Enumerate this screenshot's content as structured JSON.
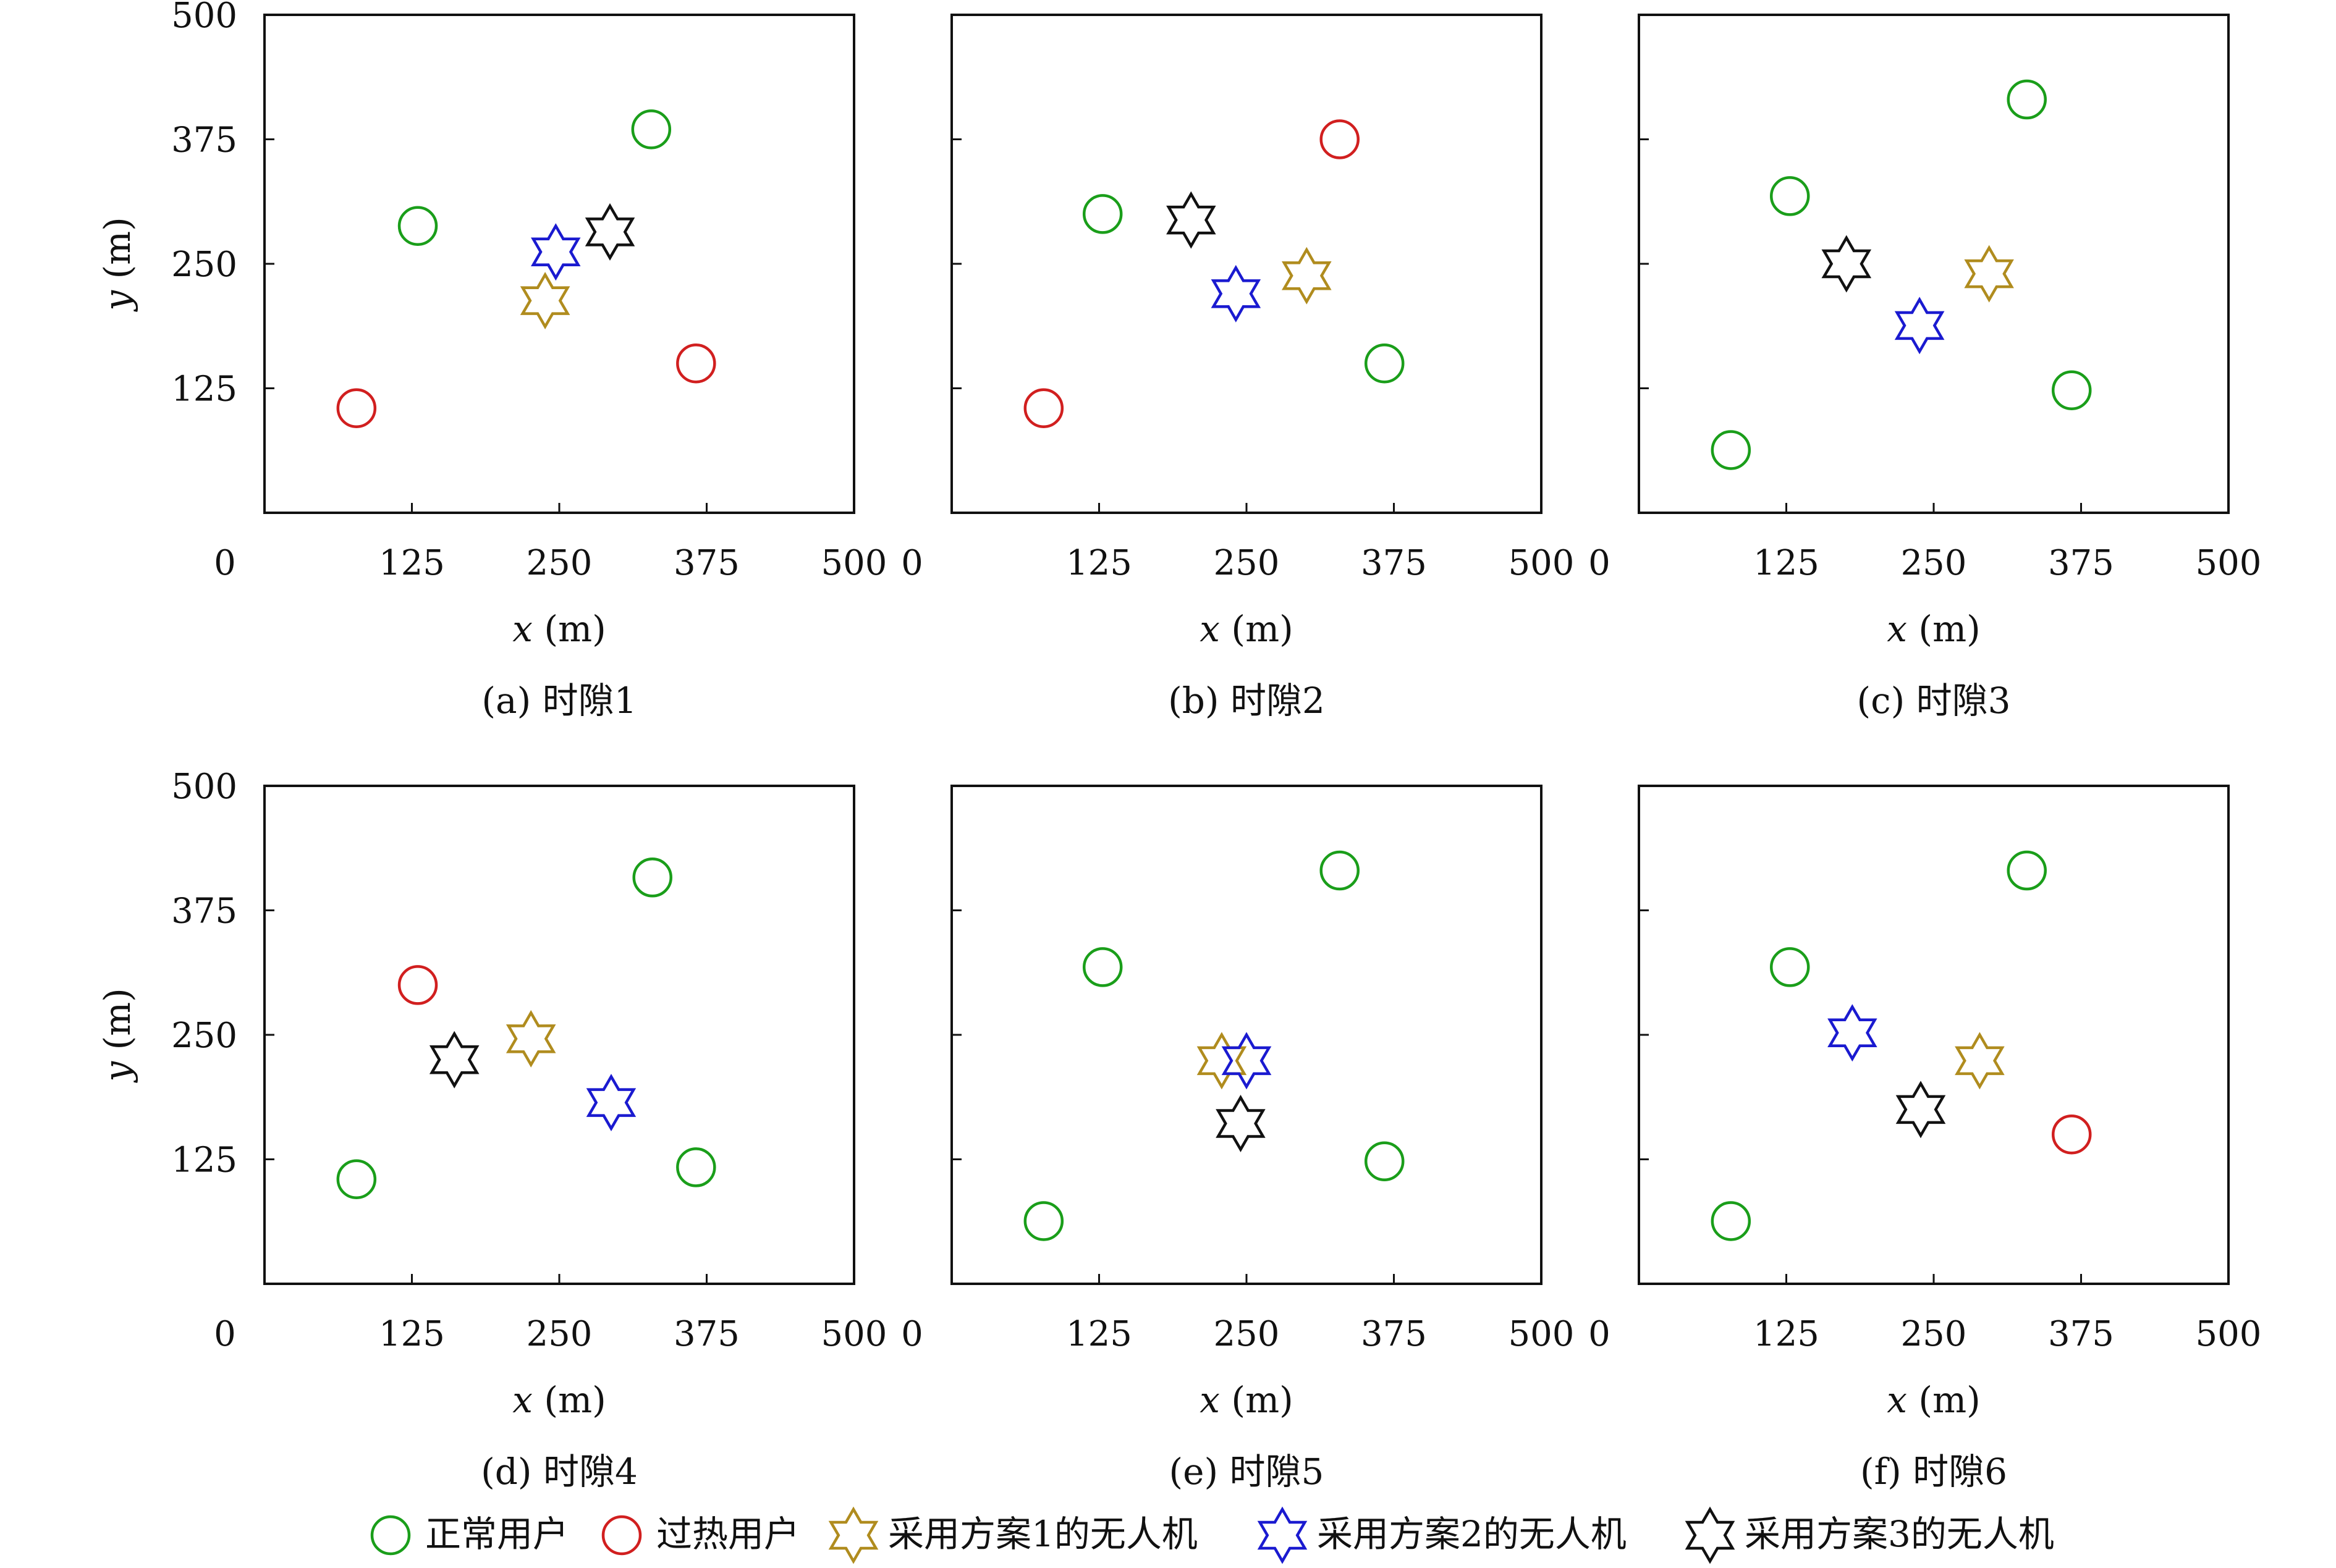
{
  "colors": {
    "normal_user": "#1a9e1a",
    "overheated_user": "#d11f1f",
    "uav_scheme1": "#b08c1e",
    "uav_scheme2": "#1a1ad0",
    "uav_scheme3": "#111111"
  },
  "legend": [
    {
      "key": "normal_user",
      "label": "正常用户",
      "marker": "circle"
    },
    {
      "key": "overheated_user",
      "label": "过热用户",
      "marker": "circle"
    },
    {
      "key": "uav_scheme1",
      "label": "采用方案1的无人机",
      "marker": "hexagram"
    },
    {
      "key": "uav_scheme2",
      "label": "采用方案2的无人机",
      "marker": "hexagram"
    },
    {
      "key": "uav_scheme3",
      "label": "采用方案3的无人机",
      "marker": "hexagram"
    }
  ],
  "chart_data": [
    {
      "type": "scatter",
      "caption": "(a) 时隙1",
      "xlabel": "x (m)",
      "ylabel": "y (m)",
      "xlim": [
        0,
        500
      ],
      "ylim": [
        0,
        500
      ],
      "xticks": [
        "0",
        "125",
        "250",
        "375",
        "500"
      ],
      "yticks": [
        "125",
        "250",
        "375",
        "500"
      ],
      "grid": false,
      "series": [
        {
          "key": "normal_user",
          "points": [
            [
              130,
              288
            ],
            [
              328,
              385
            ]
          ]
        },
        {
          "key": "overheated_user",
          "points": [
            [
              78,
              105
            ],
            [
              366,
              150
            ]
          ]
        },
        {
          "key": "uav_scheme1",
          "points": [
            [
              238,
              213
            ]
          ]
        },
        {
          "key": "uav_scheme2",
          "points": [
            [
              247,
              262
            ]
          ]
        },
        {
          "key": "uav_scheme3",
          "points": [
            [
              293,
              282
            ]
          ]
        }
      ]
    },
    {
      "type": "scatter",
      "caption": "(b) 时隙2",
      "xlabel": "x (m)",
      "ylabel": "",
      "xlim": [
        0,
        500
      ],
      "ylim": [
        0,
        500
      ],
      "xticks": [
        "0",
        "125",
        "250",
        "375",
        "500"
      ],
      "yticks": [],
      "grid": false,
      "series": [
        {
          "key": "normal_user",
          "points": [
            [
              128,
              300
            ],
            [
              367,
              150
            ]
          ]
        },
        {
          "key": "overheated_user",
          "points": [
            [
              78,
              105
            ],
            [
              329,
              375
            ]
          ]
        },
        {
          "key": "uav_scheme1",
          "points": [
            [
              301,
              238
            ]
          ]
        },
        {
          "key": "uav_scheme2",
          "points": [
            [
              241,
              220
            ]
          ]
        },
        {
          "key": "uav_scheme3",
          "points": [
            [
              203,
              294
            ]
          ]
        }
      ]
    },
    {
      "type": "scatter",
      "caption": "(c) 时隙3",
      "xlabel": "x (m)",
      "ylabel": "",
      "xlim": [
        0,
        500
      ],
      "ylim": [
        0,
        500
      ],
      "xticks": [
        "0",
        "125",
        "250",
        "375",
        "500"
      ],
      "yticks": [],
      "grid": false,
      "series": [
        {
          "key": "normal_user",
          "points": [
            [
              128,
              318
            ],
            [
              78,
              63
            ],
            [
              329,
              415
            ],
            [
              367,
              123
            ]
          ]
        },
        {
          "key": "overheated_user",
          "points": []
        },
        {
          "key": "uav_scheme1",
          "points": [
            [
              297,
              240
            ]
          ]
        },
        {
          "key": "uav_scheme2",
          "points": [
            [
              238,
              188
            ]
          ]
        },
        {
          "key": "uav_scheme3",
          "points": [
            [
              176,
              250
            ]
          ]
        }
      ]
    },
    {
      "type": "scatter",
      "caption": "(d) 时隙4",
      "xlabel": "x (m)",
      "ylabel": "y (m)",
      "xlim": [
        0,
        500
      ],
      "ylim": [
        0,
        500
      ],
      "xticks": [
        "0",
        "125",
        "250",
        "375",
        "500"
      ],
      "yticks": [
        "125",
        "250",
        "375",
        "500"
      ],
      "grid": false,
      "series": [
        {
          "key": "normal_user",
          "points": [
            [
              78,
              105
            ],
            [
              329,
              408
            ],
            [
              366,
              117
            ]
          ]
        },
        {
          "key": "overheated_user",
          "points": [
            [
              130,
              300
            ]
          ]
        },
        {
          "key": "uav_scheme1",
          "points": [
            [
              226,
              246
            ]
          ]
        },
        {
          "key": "uav_scheme2",
          "points": [
            [
              294,
              182
            ]
          ]
        },
        {
          "key": "uav_scheme3",
          "points": [
            [
              161,
              225
            ]
          ]
        }
      ]
    },
    {
      "type": "scatter",
      "caption": "(e) 时隙5",
      "xlabel": "x (m)",
      "ylabel": "",
      "xlim": [
        0,
        500
      ],
      "ylim": [
        0,
        500
      ],
      "xticks": [
        "0",
        "125",
        "250",
        "375",
        "500"
      ],
      "yticks": [],
      "grid": false,
      "series": [
        {
          "key": "normal_user",
          "points": [
            [
              128,
              318
            ],
            [
              78,
              63
            ],
            [
              329,
              415
            ],
            [
              367,
              123
            ]
          ]
        },
        {
          "key": "overheated_user",
          "points": []
        },
        {
          "key": "uav_scheme1",
          "points": [
            [
              229,
              224
            ]
          ]
        },
        {
          "key": "uav_scheme2",
          "points": [
            [
              250,
              224
            ]
          ]
        },
        {
          "key": "uav_scheme3",
          "points": [
            [
              245,
              161
            ]
          ]
        }
      ]
    },
    {
      "type": "scatter",
      "caption": "(f) 时隙6",
      "xlabel": "x (m)",
      "ylabel": "",
      "xlim": [
        0,
        500
      ],
      "ylim": [
        0,
        500
      ],
      "xticks": [
        "0",
        "125",
        "250",
        "375",
        "500"
      ],
      "yticks": [],
      "grid": false,
      "series": [
        {
          "key": "normal_user",
          "points": [
            [
              128,
              318
            ],
            [
              78,
              63
            ],
            [
              329,
              415
            ]
          ]
        },
        {
          "key": "overheated_user",
          "points": [
            [
              367,
              150
            ]
          ]
        },
        {
          "key": "uav_scheme1",
          "points": [
            [
              289,
              224
            ]
          ]
        },
        {
          "key": "uav_scheme2",
          "points": [
            [
              181,
              252
            ]
          ]
        },
        {
          "key": "uav_scheme3",
          "points": [
            [
              239,
              175
            ]
          ]
        }
      ]
    }
  ]
}
